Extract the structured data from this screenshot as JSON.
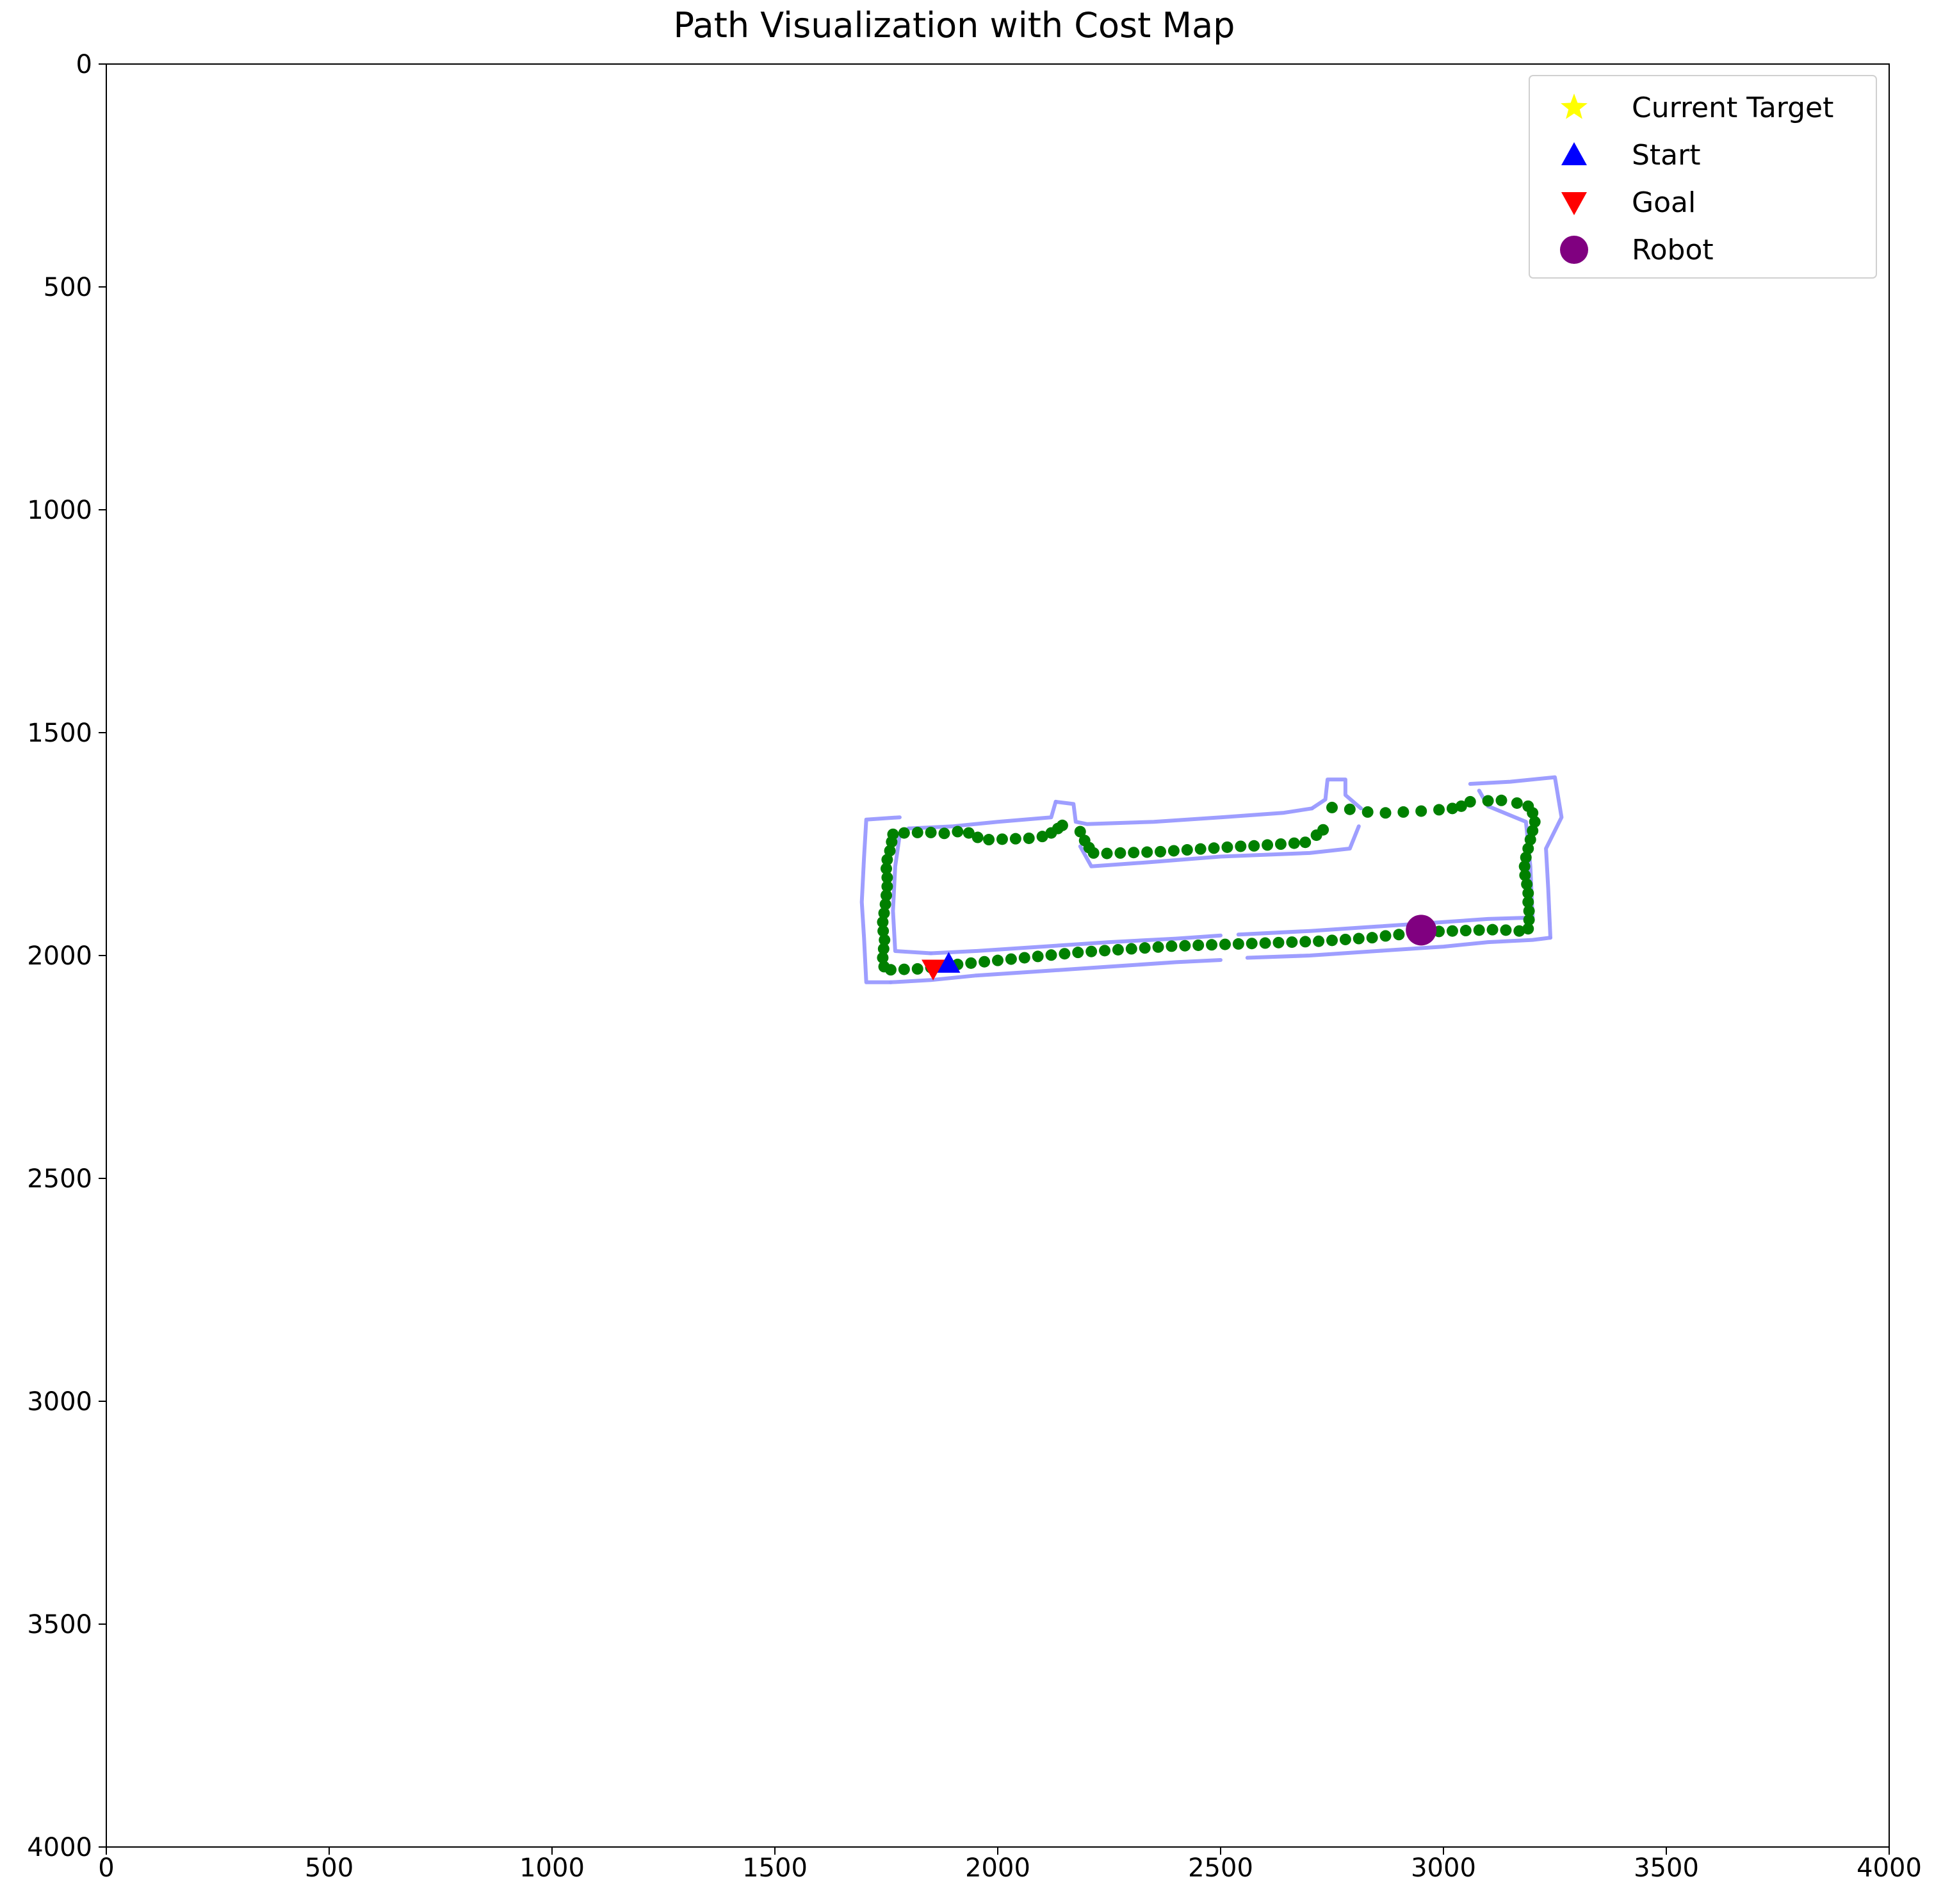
{
  "chart_data": {
    "type": "scatter",
    "title": "Path Visualization with Cost Map",
    "xlabel": "",
    "ylabel": "",
    "xlim": [
      0,
      4000
    ],
    "ylim": [
      4000,
      0
    ],
    "y_inverted": true,
    "x_ticks": [
      0,
      500,
      1000,
      1500,
      2000,
      2500,
      3000,
      3500,
      4000
    ],
    "y_ticks": [
      0,
      500,
      1000,
      1500,
      2000,
      2500,
      3000,
      3500,
      4000
    ],
    "x_tick_labels": [
      "0",
      "500",
      "1000",
      "1500",
      "2000",
      "2500",
      "3000",
      "3500",
      "4000"
    ],
    "y_tick_labels": [
      "0",
      "500",
      "1000",
      "1500",
      "2000",
      "2500",
      "3000",
      "3500",
      "4000"
    ],
    "grid": false,
    "legend_placement": "top-right",
    "legend": [
      {
        "label": "Current Target",
        "marker": "star",
        "color": "#ffff00"
      },
      {
        "label": "Start",
        "marker": "triangle-up",
        "color": "#0000ff"
      },
      {
        "label": "Goal",
        "marker": "triangle-down",
        "color": "#ff0000"
      },
      {
        "label": "Robot",
        "marker": "circle",
        "color": "#800080"
      }
    ],
    "cost_map": {
      "color": "#9999ff",
      "segments": [
        [
          [
            1780,
            1690
          ],
          [
            1705,
            1695
          ],
          [
            1700,
            1780
          ],
          [
            1695,
            1880
          ],
          [
            1700,
            1960
          ],
          [
            1705,
            2060
          ],
          [
            1760,
            2060
          ]
        ],
        [
          [
            1760,
            2060
          ],
          [
            1850,
            2055
          ],
          [
            1950,
            2045
          ],
          [
            2100,
            2035
          ],
          [
            2250,
            2025
          ],
          [
            2400,
            2015
          ],
          [
            2500,
            2010
          ]
        ],
        [
          [
            2560,
            2005
          ],
          [
            2700,
            2000
          ],
          [
            2850,
            1990
          ],
          [
            3000,
            1980
          ],
          [
            3100,
            1970
          ],
          [
            3200,
            1965
          ],
          [
            3240,
            1960
          ]
        ],
        [
          [
            3240,
            1960
          ],
          [
            3235,
            1850
          ],
          [
            3230,
            1760
          ],
          [
            3265,
            1690
          ],
          [
            3250,
            1600
          ],
          [
            3150,
            1610
          ],
          [
            3060,
            1615
          ]
        ],
        [
          [
            2815,
            1670
          ],
          [
            2780,
            1640
          ],
          [
            2780,
            1605
          ],
          [
            2740,
            1605
          ],
          [
            2735,
            1650
          ],
          [
            2705,
            1670
          ]
        ],
        [
          [
            2705,
            1670
          ],
          [
            2640,
            1680
          ],
          [
            2500,
            1690
          ],
          [
            2350,
            1700
          ],
          [
            2200,
            1705
          ],
          [
            2175,
            1700
          ],
          [
            2170,
            1660
          ],
          [
            2130,
            1655
          ]
        ],
        [
          [
            2130,
            1655
          ],
          [
            2120,
            1690
          ],
          [
            2000,
            1700
          ],
          [
            1900,
            1710
          ],
          [
            1800,
            1715
          ]
        ],
        [
          [
            1800,
            1715
          ],
          [
            1780,
            1730
          ],
          [
            1770,
            1800
          ],
          [
            1765,
            1900
          ],
          [
            1770,
            1990
          ],
          [
            1850,
            1995
          ]
        ],
        [
          [
            1850,
            1995
          ],
          [
            1950,
            1990
          ],
          [
            2100,
            1980
          ],
          [
            2250,
            1970
          ],
          [
            2400,
            1962
          ],
          [
            2500,
            1955
          ]
        ],
        [
          [
            2540,
            1953
          ],
          [
            2700,
            1945
          ],
          [
            2850,
            1935
          ],
          [
            3000,
            1925
          ],
          [
            3100,
            1918
          ],
          [
            3200,
            1915
          ]
        ],
        [
          [
            3200,
            1915
          ],
          [
            3195,
            1800
          ],
          [
            3185,
            1700
          ],
          [
            3100,
            1665
          ],
          [
            3080,
            1630
          ]
        ],
        [
          [
            2810,
            1710
          ],
          [
            2790,
            1760
          ],
          [
            2700,
            1770
          ],
          [
            2500,
            1778
          ],
          [
            2350,
            1790
          ],
          [
            2210,
            1800
          ],
          [
            2185,
            1755
          ]
        ]
      ]
    },
    "path": {
      "color": "#008000",
      "points": [
        [
          2750,
          1668
        ],
        [
          2790,
          1672
        ],
        [
          2830,
          1678
        ],
        [
          2870,
          1680
        ],
        [
          2910,
          1678
        ],
        [
          2950,
          1676
        ],
        [
          2990,
          1673
        ],
        [
          3020,
          1670
        ],
        [
          3040,
          1665
        ],
        [
          3060,
          1655
        ],
        [
          3100,
          1653
        ],
        [
          3130,
          1652
        ],
        [
          3165,
          1658
        ],
        [
          3190,
          1665
        ],
        [
          3200,
          1680
        ],
        [
          3205,
          1700
        ],
        [
          3200,
          1720
        ],
        [
          3195,
          1740
        ],
        [
          3190,
          1760
        ],
        [
          3185,
          1780
        ],
        [
          3182,
          1800
        ],
        [
          3183,
          1820
        ],
        [
          3187,
          1840
        ],
        [
          3190,
          1860
        ],
        [
          3190,
          1880
        ],
        [
          3192,
          1900
        ],
        [
          3192,
          1920
        ],
        [
          3190,
          1940
        ],
        [
          3170,
          1945
        ],
        [
          3140,
          1943
        ],
        [
          3110,
          1942
        ],
        [
          3080,
          1943
        ],
        [
          3050,
          1944
        ],
        [
          3020,
          1945
        ],
        [
          2990,
          1946
        ],
        [
          2960,
          1948
        ],
        [
          2930,
          1950
        ],
        [
          2900,
          1953
        ],
        [
          2870,
          1956
        ],
        [
          2840,
          1960
        ],
        [
          2810,
          1962
        ],
        [
          2780,
          1964
        ],
        [
          2750,
          1966
        ],
        [
          2720,
          1968
        ],
        [
          2690,
          1969
        ],
        [
          2660,
          1970
        ],
        [
          2630,
          1971
        ],
        [
          2600,
          1972
        ],
        [
          2570,
          1973
        ],
        [
          2540,
          1974
        ],
        [
          2510,
          1975
        ],
        [
          2480,
          1976
        ],
        [
          2450,
          1977
        ],
        [
          2420,
          1978
        ],
        [
          2390,
          1979
        ],
        [
          2360,
          1981
        ],
        [
          2330,
          1983
        ],
        [
          2300,
          1985
        ],
        [
          2270,
          1987
        ],
        [
          2240,
          1989
        ],
        [
          2210,
          1991
        ],
        [
          2180,
          1993
        ],
        [
          2150,
          1996
        ],
        [
          2120,
          1999
        ],
        [
          2090,
          2002
        ],
        [
          2060,
          2005
        ],
        [
          2030,
          2008
        ],
        [
          2000,
          2011
        ],
        [
          1970,
          2014
        ],
        [
          1940,
          2017
        ],
        [
          1910,
          2020
        ],
        [
          1880,
          2023
        ],
        [
          1850,
          2027
        ],
        [
          1820,
          2030
        ],
        [
          1790,
          2031
        ],
        [
          1760,
          2032
        ],
        [
          1745,
          2025
        ],
        [
          1742,
          2005
        ],
        [
          1744,
          1985
        ],
        [
          1746,
          1965
        ],
        [
          1743,
          1945
        ],
        [
          1742,
          1925
        ],
        [
          1745,
          1905
        ],
        [
          1748,
          1885
        ],
        [
          1750,
          1865
        ],
        [
          1752,
          1845
        ],
        [
          1752,
          1825
        ],
        [
          1750,
          1805
        ],
        [
          1752,
          1785
        ],
        [
          1758,
          1765
        ],
        [
          1762,
          1745
        ],
        [
          1765,
          1728
        ],
        [
          1790,
          1725
        ],
        [
          1820,
          1724
        ],
        [
          1850,
          1724
        ],
        [
          1880,
          1726
        ],
        [
          1910,
          1722
        ],
        [
          1935,
          1725
        ],
        [
          1955,
          1735
        ],
        [
          1980,
          1740
        ],
        [
          2010,
          1739
        ],
        [
          2040,
          1738
        ],
        [
          2070,
          1737
        ],
        [
          2100,
          1733
        ],
        [
          2120,
          1725
        ],
        [
          2135,
          1715
        ],
        [
          2145,
          1708
        ]
      ],
      "points_b": [
        [
          2185,
          1722
        ],
        [
          2195,
          1742
        ],
        [
          2205,
          1758
        ],
        [
          2215,
          1770
        ],
        [
          2245,
          1771
        ],
        [
          2275,
          1770
        ],
        [
          2305,
          1769
        ],
        [
          2335,
          1768
        ],
        [
          2365,
          1767
        ],
        [
          2395,
          1765
        ],
        [
          2425,
          1763
        ],
        [
          2455,
          1761
        ],
        [
          2485,
          1759
        ],
        [
          2515,
          1757
        ],
        [
          2545,
          1755
        ],
        [
          2575,
          1754
        ],
        [
          2605,
          1752
        ],
        [
          2635,
          1750
        ],
        [
          2665,
          1748
        ],
        [
          2690,
          1746
        ],
        [
          2715,
          1730
        ],
        [
          2730,
          1718
        ]
      ]
    },
    "markers": {
      "start": {
        "x": 1890,
        "y": 2018
      },
      "goal": {
        "x": 1855,
        "y": 2030
      },
      "robot": {
        "x": 2950,
        "y": 1943
      }
    }
  }
}
